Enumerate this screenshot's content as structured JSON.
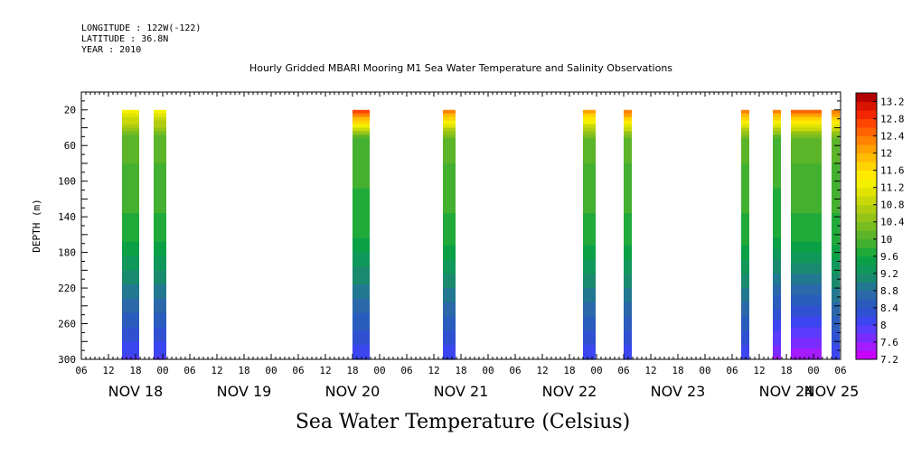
{
  "header": {
    "longitude": "LONGITUDE : 122W(-122)",
    "latitude": "LATITUDE : 36.8N",
    "year": "YEAR : 2010",
    "title": "Hourly Gridded MBARI Mooring M1 Sea Water Temperature and Salinity Observations"
  },
  "chart_data": {
    "type": "heatmap",
    "title": "Hourly Gridded MBARI Mooring M1 Sea Water Temperature and Salinity Observations",
    "xlabel": "Sea Water Temperature (Celsius)",
    "ylabel": "DEPTH (m)",
    "ylim": [
      300,
      0
    ],
    "y_ticks": [
      20,
      60,
      100,
      140,
      180,
      220,
      260,
      300
    ],
    "x_range_hours": [
      0,
      168
    ],
    "x_hour_labels": [
      "06",
      "12",
      "18",
      "00",
      "06",
      "12",
      "18",
      "00",
      "06",
      "12",
      "18",
      "00",
      "06",
      "12",
      "18",
      "00",
      "06",
      "12",
      "18",
      "00",
      "06",
      "12",
      "18",
      "00",
      "06",
      "12",
      "18",
      "00",
      "06"
    ],
    "x_day_labels": [
      {
        "label": "NOV 18",
        "hour": 12
      },
      {
        "label": "NOV 19",
        "hour": 36
      },
      {
        "label": "NOV 20",
        "hour": 60
      },
      {
        "label": "NOV 21",
        "hour": 84
      },
      {
        "label": "NOV 22",
        "hour": 108
      },
      {
        "label": "NOV 23",
        "hour": 132
      },
      {
        "label": "NOV 24",
        "hour": 156
      },
      {
        "label": "NOV 25",
        "hour": 166
      }
    ],
    "colorbar": {
      "levels": [
        7.2,
        7.4,
        7.6,
        7.8,
        8,
        8.2,
        8.4,
        8.6,
        8.8,
        9,
        9.2,
        9.4,
        9.6,
        9.8,
        10,
        10.2,
        10.4,
        10.6,
        10.8,
        11,
        11.2,
        11.4,
        11.6,
        11.8,
        12,
        12.2,
        12.4,
        12.6,
        12.8,
        13,
        13.2,
        13.4
      ],
      "labels": [
        "7.2",
        "7.6",
        "8",
        "8.4",
        "8.8",
        "9.2",
        "9.6",
        "10",
        "10.4",
        "10.8",
        "11.2",
        "11.6",
        "12",
        "12.4",
        "12.8",
        "13.2"
      ],
      "colors": [
        "#c800ff",
        "#a41cff",
        "#7a2cff",
        "#5a3cff",
        "#3c46f0",
        "#3050d2",
        "#2a5cbe",
        "#2a68aa",
        "#227890",
        "#1a8a6e",
        "#10985a",
        "#0aa046",
        "#20aa3a",
        "#44b030",
        "#5cb428",
        "#78bc20",
        "#94c418",
        "#b0cc10",
        "#c8d808",
        "#e0e400",
        "#f4f000",
        "#ffea00",
        "#ffd400",
        "#ffbc00",
        "#ffa000",
        "#ff8200",
        "#ff6400",
        "#ff4400",
        "#f42600",
        "#d81400",
        "#b40000"
      ]
    },
    "columns": [
      {
        "start": 9,
        "end": 12,
        "surface": 11.3,
        "bottom": 7.9,
        "plateau": 10.1
      },
      {
        "start": 16,
        "end": 18,
        "surface": 11.2,
        "bottom": 7.9,
        "plateau": 10.1
      },
      {
        "start": 60,
        "end": 63,
        "surface": 12.7,
        "bottom": 8.0,
        "plateau": 10.0
      },
      {
        "start": 80,
        "end": 82,
        "surface": 12.2,
        "bottom": 8.0,
        "plateau": 10.1
      },
      {
        "start": 111,
        "end": 113,
        "surface": 12.0,
        "bottom": 8.0,
        "plateau": 10.1
      },
      {
        "start": 120,
        "end": 121,
        "surface": 12.3,
        "bottom": 8.0,
        "plateau": 10.1
      },
      {
        "start": 146,
        "end": 147,
        "surface": 12.2,
        "bottom": 8.0,
        "plateau": 10.1
      },
      {
        "start": 153,
        "end": 154,
        "surface": 12.2,
        "bottom": 7.5,
        "plateau": 10.0
      },
      {
        "start": 157,
        "end": 163,
        "surface": 12.4,
        "bottom": 7.4,
        "plateau": 10.1
      },
      {
        "start": 166,
        "end": 167,
        "surface": 12.3,
        "bottom": 8.0,
        "plateau": 10.1
      }
    ]
  }
}
